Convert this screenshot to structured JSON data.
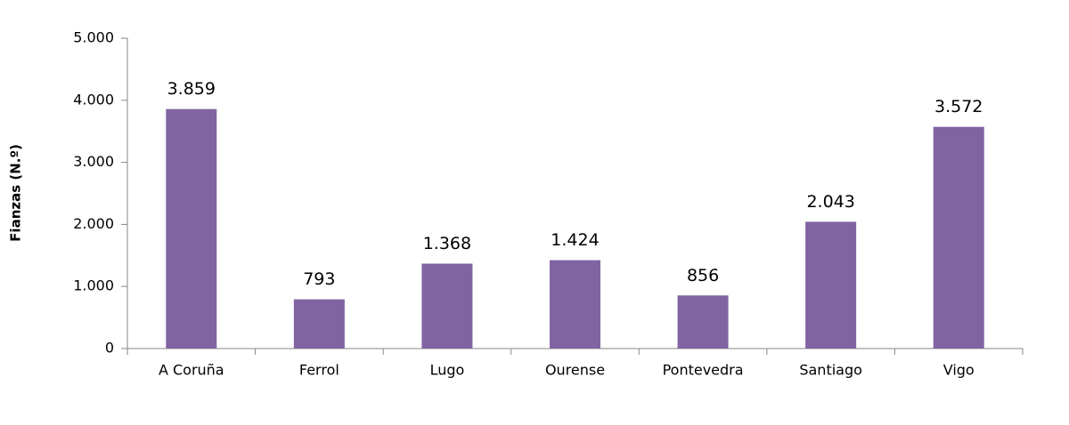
{
  "chart_data": {
    "type": "bar",
    "y_label": "Fianzas (N.º)",
    "categories": [
      "A Coruña",
      "Ferrol",
      "Lugo",
      "Ourense",
      "Pontevedra",
      "Santiago",
      "Vigo"
    ],
    "values": [
      3859,
      793,
      1368,
      1424,
      856,
      2043,
      3572
    ],
    "value_labels": [
      "3.859",
      "793",
      "1.368",
      "1.424",
      "856",
      "2.043",
      "3.572"
    ],
    "color": "#8064a2",
    "ylim": [
      0,
      5000
    ],
    "yticks": [
      0,
      {
        "value": 1000,
        "label": "1.000"
      },
      {
        "value": 2000,
        "label": "2.000"
      },
      {
        "value": 3000,
        "label": "3.000"
      },
      {
        "value": 4000,
        "label": "4.000"
      },
      {
        "value": 5000,
        "label": "5.000"
      }
    ],
    "grid": false
  }
}
